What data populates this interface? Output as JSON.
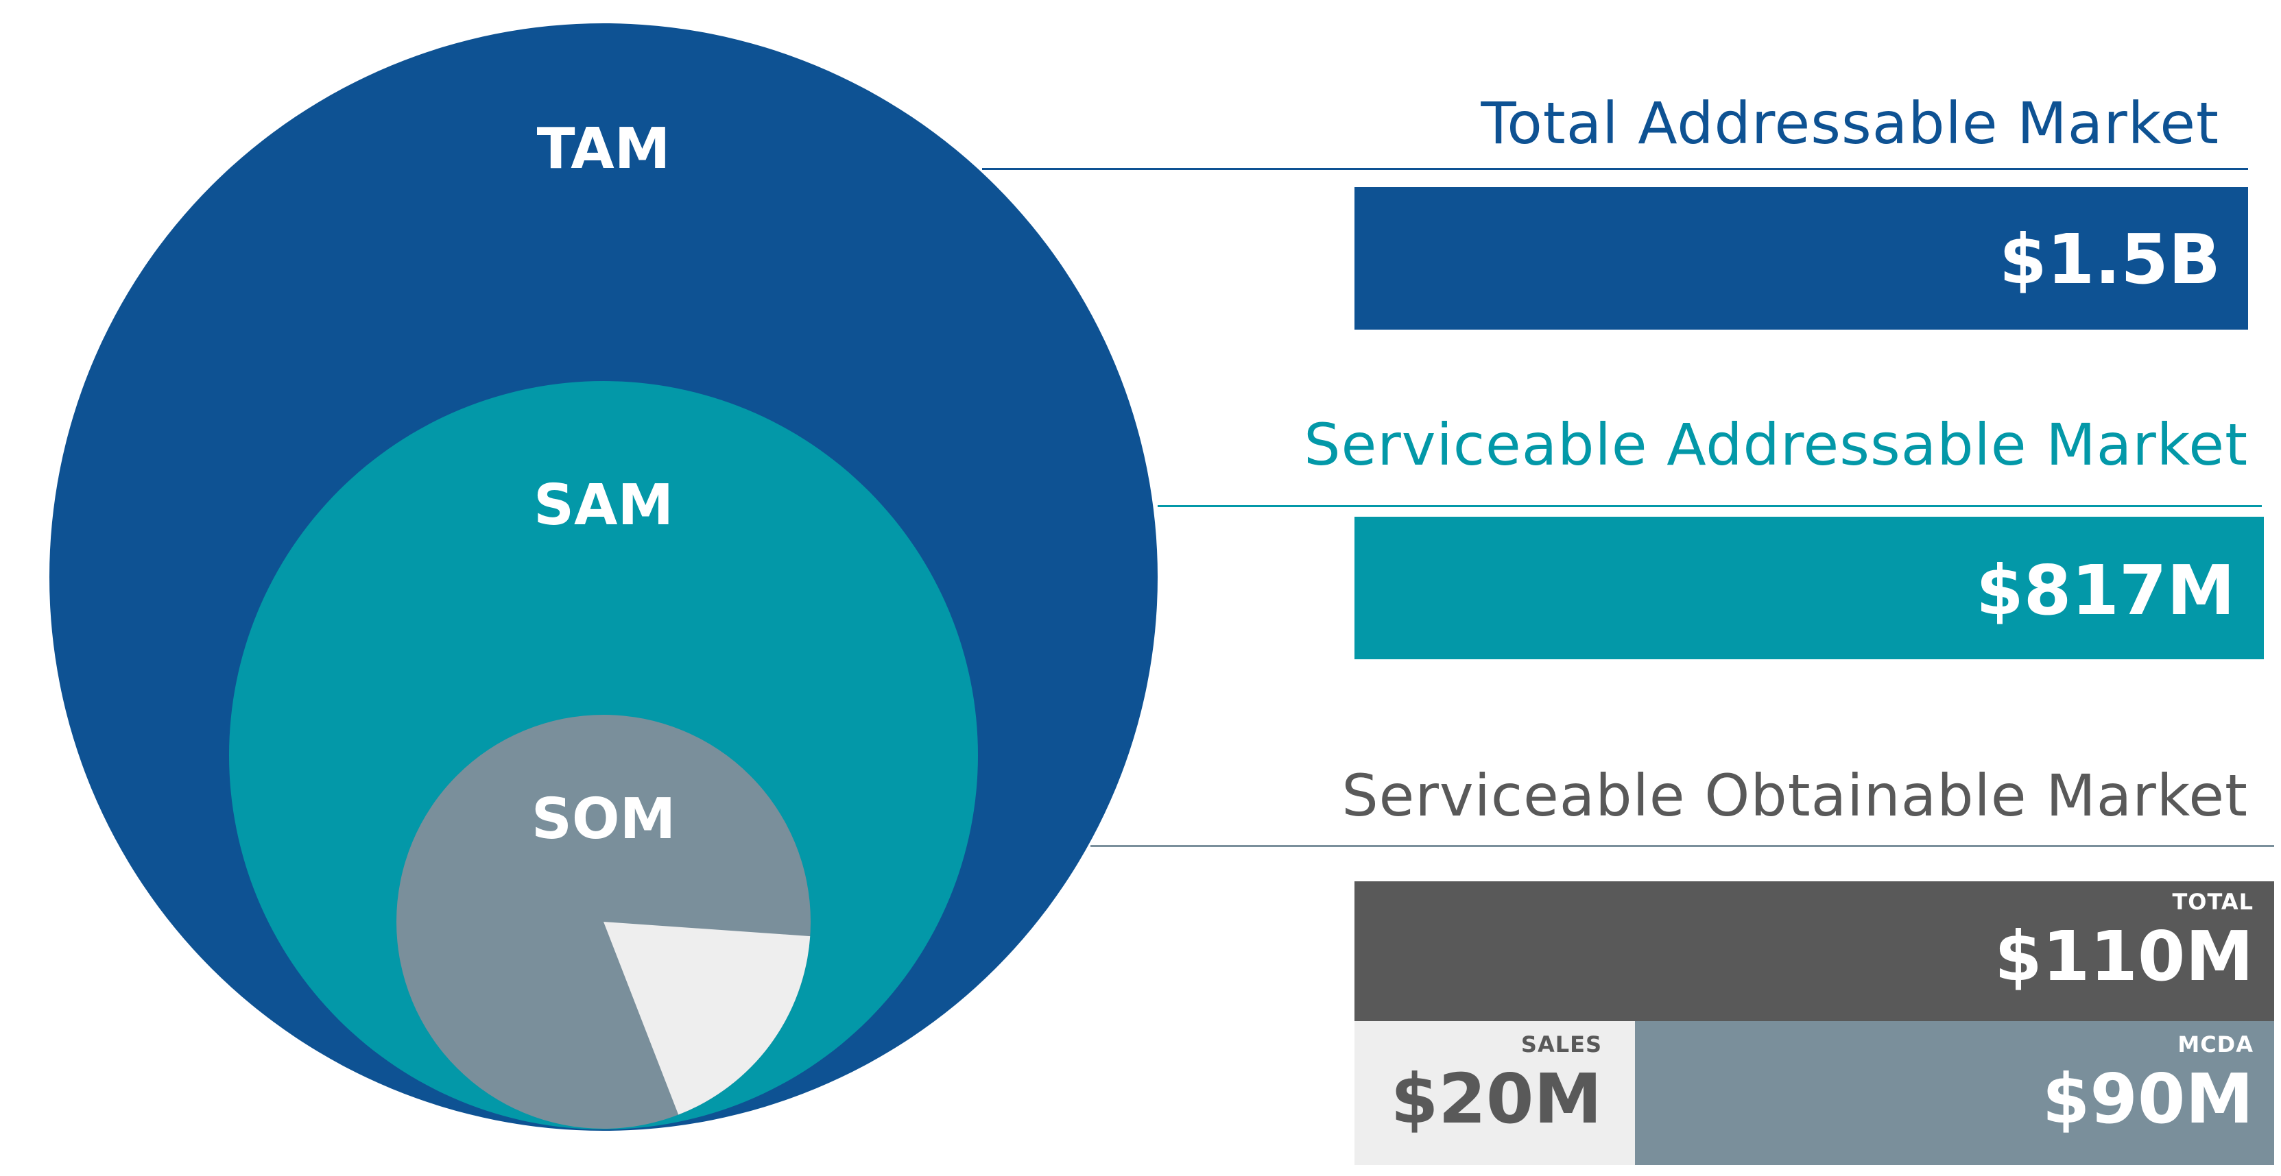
{
  "colors": {
    "tam": "#0e5293",
    "sam": "#0398a8",
    "som": "#7a8f9b",
    "som_slice": "#eeeeee",
    "total_bar": "#595959",
    "sales_bar": "#eeeeee",
    "heading_som": "#595959",
    "rule_tam": "#0e5293",
    "rule_sam": "#0398a8",
    "rule_som": "#7a8f9b"
  },
  "circles": {
    "tam_label": "TAM",
    "sam_label": "SAM",
    "som_label": "SOM",
    "som_slice_fraction": 0.18
  },
  "tam": {
    "heading": "Total Addressable Market",
    "value": "$1.5B"
  },
  "sam": {
    "heading": "Serviceable Addressable Market",
    "value": "$817M"
  },
  "som": {
    "heading": "Serviceable Obtainable Market",
    "total_tag": "TOTAL",
    "total_value": "$110M",
    "sales_tag": "SALES",
    "sales_value": "$20M",
    "mcda_tag": "MCDA",
    "mcda_value": "$90M"
  }
}
